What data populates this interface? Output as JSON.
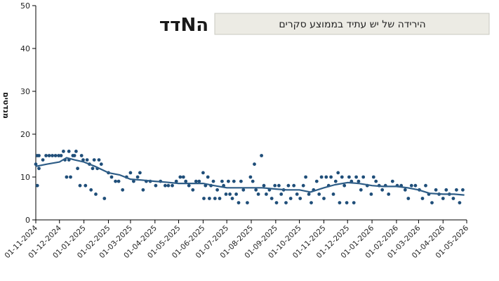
{
  "chart_data": {
    "type": "scatter",
    "title": "הירידה של יש עתיד בממוצע סקרים",
    "ylabel": "מנדטים",
    "xlabel": "",
    "ylim": [
      0,
      50
    ],
    "yticks": [
      0,
      10,
      20,
      30,
      40,
      50
    ],
    "xlim": [
      "2024-11-01",
      "2026-05-01"
    ],
    "xticks": [
      "01-11-2024",
      "01-12-2024",
      "01-01-2025",
      "01-02-2025",
      "01-03-2025",
      "01-04-2025",
      "01-05-2025",
      "01-06-2025",
      "01-07-2025",
      "01-08-2025",
      "01-09-2025",
      "01-10-2025",
      "01-11-2025",
      "01-12-2025",
      "01-01-2026",
      "01-02-2026",
      "01-03-2026",
      "01-04-2026",
      "01-05-2026"
    ],
    "grid": false,
    "point_color": "#1f4e79",
    "line_color": "#2e5d87",
    "logo": "הNדד",
    "series": [
      {
        "kind": "polls",
        "points": [
          [
            "2024-11-01",
            13
          ],
          [
            "2024-11-03",
            15
          ],
          [
            "2024-11-03",
            8
          ],
          [
            "2024-11-05",
            15
          ],
          [
            "2024-11-05",
            12
          ],
          [
            "2024-11-10",
            14
          ],
          [
            "2024-11-14",
            15
          ],
          [
            "2024-11-18",
            15
          ],
          [
            "2024-11-22",
            15
          ],
          [
            "2024-11-26",
            15
          ],
          [
            "2024-11-30",
            15
          ],
          [
            "2024-12-03",
            15
          ],
          [
            "2024-12-06",
            16
          ],
          [
            "2024-12-08",
            14
          ],
          [
            "2024-12-10",
            10
          ],
          [
            "2024-12-13",
            16
          ],
          [
            "2024-12-13",
            14
          ],
          [
            "2024-12-15",
            10
          ],
          [
            "2024-12-18",
            15
          ],
          [
            "2024-12-20",
            15
          ],
          [
            "2024-12-22",
            16
          ],
          [
            "2024-12-24",
            12
          ],
          [
            "2024-12-27",
            8
          ],
          [
            "2024-12-29",
            15
          ],
          [
            "2024-12-31",
            14
          ],
          [
            "2025-01-03",
            8
          ],
          [
            "2025-01-05",
            14
          ],
          [
            "2025-01-08",
            13
          ],
          [
            "2025-01-10",
            7
          ],
          [
            "2025-01-12",
            12
          ],
          [
            "2025-01-14",
            14
          ],
          [
            "2025-01-16",
            6
          ],
          [
            "2025-01-18",
            12
          ],
          [
            "2025-01-20",
            14
          ],
          [
            "2025-01-23",
            13
          ],
          [
            "2025-01-27",
            5
          ],
          [
            "2025-02-01",
            11
          ],
          [
            "2025-02-05",
            10
          ],
          [
            "2025-02-10",
            9
          ],
          [
            "2025-02-14",
            9
          ],
          [
            "2025-02-19",
            7
          ],
          [
            "2025-02-24",
            10
          ],
          [
            "2025-03-01",
            11
          ],
          [
            "2025-03-05",
            9
          ],
          [
            "2025-03-10",
            10
          ],
          [
            "2025-03-13",
            11
          ],
          [
            "2025-03-17",
            7
          ],
          [
            "2025-03-21",
            9
          ],
          [
            "2025-03-26",
            9
          ],
          [
            "2025-04-02",
            8
          ],
          [
            "2025-04-08",
            9
          ],
          [
            "2025-04-14",
            8
          ],
          [
            "2025-04-18",
            8
          ],
          [
            "2025-04-23",
            8
          ],
          [
            "2025-04-28",
            9
          ],
          [
            "2025-05-03",
            10
          ],
          [
            "2025-05-07",
            10
          ],
          [
            "2025-05-10",
            9
          ],
          [
            "2025-05-14",
            8
          ],
          [
            "2025-05-19",
            7
          ],
          [
            "2025-05-23",
            9
          ],
          [
            "2025-05-27",
            9
          ],
          [
            "2025-06-01",
            11
          ],
          [
            "2025-06-02",
            5
          ],
          [
            "2025-06-04",
            8
          ],
          [
            "2025-06-07",
            10
          ],
          [
            "2025-06-09",
            5
          ],
          [
            "2025-06-11",
            8
          ],
          [
            "2025-06-14",
            9
          ],
          [
            "2025-06-16",
            5
          ],
          [
            "2025-06-19",
            7
          ],
          [
            "2025-06-22",
            5
          ],
          [
            "2025-06-25",
            9
          ],
          [
            "2025-06-27",
            8
          ],
          [
            "2025-06-30",
            6
          ],
          [
            "2025-07-03",
            9
          ],
          [
            "2025-07-05",
            6
          ],
          [
            "2025-07-08",
            5
          ],
          [
            "2025-07-10",
            9
          ],
          [
            "2025-07-13",
            6
          ],
          [
            "2025-07-16",
            4
          ],
          [
            "2025-07-19",
            9
          ],
          [
            "2025-07-22",
            7
          ],
          [
            "2025-07-27",
            4
          ],
          [
            "2025-07-31",
            10
          ],
          [
            "2025-08-03",
            9
          ],
          [
            "2025-08-05",
            13
          ],
          [
            "2025-08-07",
            7
          ],
          [
            "2025-08-10",
            6
          ],
          [
            "2025-08-14",
            15
          ],
          [
            "2025-08-17",
            8
          ],
          [
            "2025-08-20",
            6
          ],
          [
            "2025-08-24",
            7
          ],
          [
            "2025-08-27",
            5
          ],
          [
            "2025-08-31",
            8
          ],
          [
            "2025-09-02",
            4
          ],
          [
            "2025-09-05",
            8
          ],
          [
            "2025-09-08",
            6
          ],
          [
            "2025-09-11",
            7
          ],
          [
            "2025-09-14",
            4
          ],
          [
            "2025-09-17",
            8
          ],
          [
            "2025-09-20",
            5
          ],
          [
            "2025-09-24",
            8
          ],
          [
            "2025-09-28",
            6
          ],
          [
            "2025-10-02",
            5
          ],
          [
            "2025-10-06",
            8
          ],
          [
            "2025-10-09",
            10
          ],
          [
            "2025-10-13",
            6
          ],
          [
            "2025-10-16",
            4
          ],
          [
            "2025-10-19",
            7
          ],
          [
            "2025-10-23",
            9
          ],
          [
            "2025-10-26",
            6
          ],
          [
            "2025-10-29",
            10
          ],
          [
            "2025-11-01",
            5
          ],
          [
            "2025-11-04",
            10
          ],
          [
            "2025-11-07",
            8
          ],
          [
            "2025-11-10",
            10
          ],
          [
            "2025-11-13",
            6
          ],
          [
            "2025-11-16",
            9
          ],
          [
            "2025-11-19",
            11
          ],
          [
            "2025-11-21",
            4
          ],
          [
            "2025-11-24",
            10
          ],
          [
            "2025-11-27",
            8
          ],
          [
            "2025-11-30",
            4
          ],
          [
            "2025-12-03",
            10
          ],
          [
            "2025-12-06",
            9
          ],
          [
            "2025-12-09",
            4
          ],
          [
            "2025-12-12",
            10
          ],
          [
            "2025-12-15",
            9
          ],
          [
            "2025-12-18",
            7
          ],
          [
            "2025-12-21",
            10
          ],
          [
            "2025-12-26",
            8
          ],
          [
            "2025-12-31",
            6
          ],
          [
            "2026-01-03",
            10
          ],
          [
            "2026-01-06",
            9
          ],
          [
            "2026-01-10",
            8
          ],
          [
            "2026-01-14",
            7
          ],
          [
            "2026-01-18",
            8
          ],
          [
            "2026-01-22",
            6
          ],
          [
            "2026-01-27",
            9
          ],
          [
            "2026-02-02",
            8
          ],
          [
            "2026-02-07",
            8
          ],
          [
            "2026-02-12",
            7
          ],
          [
            "2026-02-16",
            5
          ],
          [
            "2026-02-20",
            8
          ],
          [
            "2026-02-25",
            8
          ],
          [
            "2026-03-02",
            7
          ],
          [
            "2026-03-06",
            5
          ],
          [
            "2026-03-10",
            8
          ],
          [
            "2026-03-14",
            6
          ],
          [
            "2026-03-18",
            4
          ],
          [
            "2026-03-23",
            7
          ],
          [
            "2026-03-27",
            6
          ],
          [
            "2026-04-01",
            5
          ],
          [
            "2026-04-05",
            7
          ],
          [
            "2026-04-09",
            6
          ],
          [
            "2026-04-14",
            5
          ],
          [
            "2026-04-18",
            7
          ],
          [
            "2026-04-22",
            4
          ],
          [
            "2026-04-26",
            7
          ]
        ]
      },
      {
        "kind": "average",
        "points": [
          [
            "2024-11-01",
            12.5
          ],
          [
            "2024-11-15",
            13.0
          ],
          [
            "2024-12-01",
            13.5
          ],
          [
            "2024-12-10",
            14.5
          ],
          [
            "2024-12-20",
            14.0
          ],
          [
            "2025-01-01",
            13.5
          ],
          [
            "2025-01-15",
            12.5
          ],
          [
            "2025-02-01",
            11.0
          ],
          [
            "2025-02-15",
            10.5
          ],
          [
            "2025-03-01",
            9.5
          ],
          [
            "2025-03-15",
            9.3
          ],
          [
            "2025-04-01",
            9.0
          ],
          [
            "2025-04-15",
            8.8
          ],
          [
            "2025-05-01",
            8.5
          ],
          [
            "2025-05-15",
            8.5
          ],
          [
            "2025-06-01",
            8.5
          ],
          [
            "2025-06-15",
            8.0
          ],
          [
            "2025-07-01",
            7.5
          ],
          [
            "2025-07-15",
            7.5
          ],
          [
            "2025-08-01",
            7.5
          ],
          [
            "2025-08-15",
            7.5
          ],
          [
            "2025-09-01",
            7.2
          ],
          [
            "2025-09-15",
            7.0
          ],
          [
            "2025-10-01",
            7.0
          ],
          [
            "2025-10-15",
            6.5
          ],
          [
            "2025-11-01",
            7.5
          ],
          [
            "2025-11-15",
            8.2
          ],
          [
            "2025-12-01",
            8.7
          ],
          [
            "2025-12-15",
            8.5
          ],
          [
            "2026-01-01",
            8.0
          ],
          [
            "2026-01-15",
            7.8
          ],
          [
            "2026-02-01",
            7.8
          ],
          [
            "2026-02-15",
            7.5
          ],
          [
            "2026-03-01",
            7.0
          ],
          [
            "2026-03-15",
            6.2
          ],
          [
            "2026-04-01",
            6.0
          ],
          [
            "2026-04-15",
            6.0
          ],
          [
            "2026-04-28",
            5.8
          ]
        ]
      }
    ]
  }
}
